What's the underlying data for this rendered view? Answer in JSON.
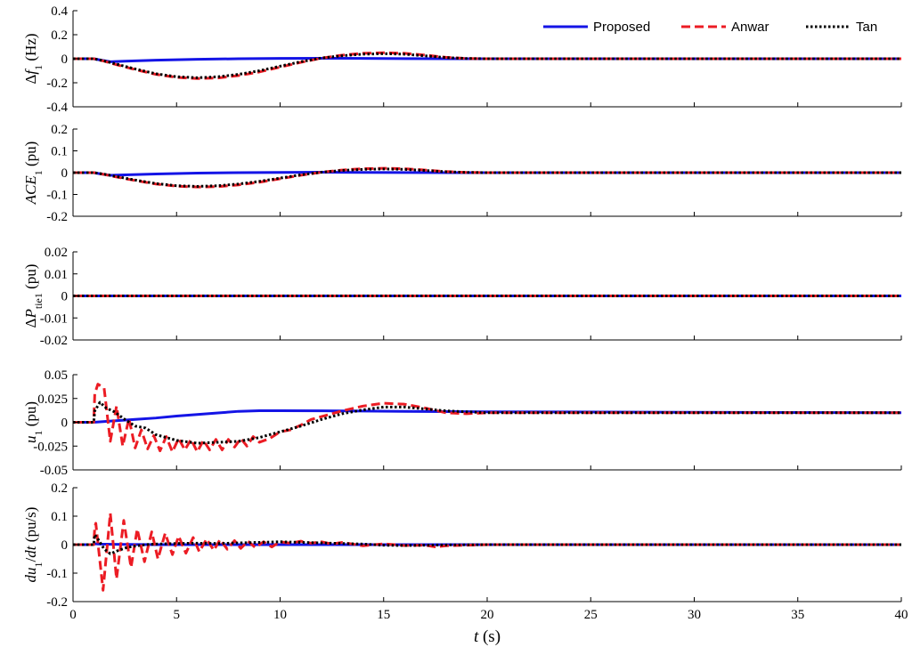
{
  "colors": {
    "proposed": "#1414e6",
    "anwar": "#ec1c24",
    "tan": "#000000",
    "axis": "#000000"
  },
  "legend": {
    "placement": "top-right",
    "items": [
      {
        "label": "Proposed",
        "color": "#1414e6",
        "dash": "solid"
      },
      {
        "label": "Anwar",
        "color": "#ec1c24",
        "dash": "dashed"
      },
      {
        "label": "Tan",
        "color": "#000000",
        "dash": "dotted"
      }
    ]
  },
  "chart_data": {
    "type": "line",
    "shared_x": {
      "label_main": "t",
      "label_unit": "(s)",
      "lim": [
        0,
        40
      ],
      "ticks": [
        0,
        5,
        10,
        15,
        20,
        25,
        30,
        35,
        40
      ],
      "tick_labels": [
        "0",
        "5",
        "10",
        "15",
        "20",
        "25",
        "30",
        "35",
        "40"
      ]
    },
    "panels": [
      {
        "id": "df1",
        "ylabel": {
          "prefix": "Δ",
          "var": "f",
          "sub": "1",
          "unit": " (Hz)"
        },
        "ylim": [
          -0.4,
          0.4
        ],
        "yticks": [
          -0.4,
          -0.2,
          0,
          0.2,
          0.4
        ],
        "ytick_labels": [
          "-0.4",
          "-0.2",
          "0",
          "0.2",
          "0.4"
        ],
        "series": [
          {
            "name": "Proposed",
            "x": [
              0,
              1,
              1.3,
              1.8,
              2.5,
              4,
              6,
              8,
              10,
              12,
              14,
              16,
              20,
              40
            ],
            "y": [
              0,
              0,
              -0.01,
              -0.025,
              -0.02,
              -0.012,
              -0.005,
              0,
              0.003,
              0.004,
              0.003,
              0.001,
              0,
              0
            ]
          },
          {
            "name": "Anwar",
            "x": [
              0,
              1,
              1.5,
              2,
              3,
              4,
              5,
              6,
              7,
              8,
              9,
              10,
              11,
              12,
              13,
              14,
              15,
              16,
              17,
              18,
              19,
              20,
              40
            ],
            "y": [
              0,
              0,
              -0.02,
              -0.045,
              -0.09,
              -0.13,
              -0.155,
              -0.165,
              -0.16,
              -0.14,
              -0.11,
              -0.07,
              -0.03,
              0.005,
              0.03,
              0.045,
              0.05,
              0.045,
              0.03,
              0.012,
              0.002,
              0,
              0
            ]
          },
          {
            "name": "Tan",
            "x": [
              0,
              1,
              1.5,
              2,
              3,
              4,
              5,
              6,
              7,
              8,
              9,
              10,
              11,
              12,
              13,
              14,
              15,
              16,
              17,
              18,
              19,
              20,
              40
            ],
            "y": [
              0,
              0,
              -0.018,
              -0.04,
              -0.085,
              -0.125,
              -0.15,
              -0.158,
              -0.15,
              -0.13,
              -0.1,
              -0.062,
              -0.025,
              0.006,
              0.025,
              0.038,
              0.042,
              0.038,
              0.024,
              0.01,
              0.002,
              0,
              0
            ]
          }
        ]
      },
      {
        "id": "ace1",
        "ylabel": {
          "prefix": "",
          "var": "ACE",
          "sub": "1",
          "unit": " (pu)"
        },
        "ylim": [
          -0.2,
          0.2
        ],
        "yticks": [
          -0.2,
          -0.1,
          0,
          0.1,
          0.2
        ],
        "ytick_labels": [
          "-0.2",
          "-0.1",
          "0",
          "0.1",
          "0.2"
        ],
        "series": [
          {
            "name": "Proposed",
            "x": [
              0,
              1,
              1.3,
              1.8,
              2.5,
              4,
              6,
              8,
              10,
              12,
              14,
              16,
              20,
              40
            ],
            "y": [
              0,
              0,
              -0.005,
              -0.012,
              -0.01,
              -0.006,
              -0.002,
              0,
              0.001,
              0.002,
              0.001,
              0.0005,
              0,
              0
            ]
          },
          {
            "name": "Anwar",
            "x": [
              0,
              1,
              1.5,
              2,
              3,
              4,
              5,
              6,
              7,
              8,
              9,
              10,
              11,
              12,
              13,
              14,
              15,
              16,
              17,
              18,
              19,
              20,
              40
            ],
            "y": [
              0,
              0,
              -0.008,
              -0.018,
              -0.036,
              -0.052,
              -0.062,
              -0.066,
              -0.064,
              -0.056,
              -0.044,
              -0.028,
              -0.012,
              0.002,
              0.012,
              0.018,
              0.02,
              0.018,
              0.012,
              0.005,
              0.001,
              0,
              0
            ]
          },
          {
            "name": "Tan",
            "x": [
              0,
              1,
              1.5,
              2,
              3,
              4,
              5,
              6,
              7,
              8,
              9,
              10,
              11,
              12,
              13,
              14,
              15,
              16,
              17,
              18,
              19,
              20,
              40
            ],
            "y": [
              0,
              0,
              -0.007,
              -0.016,
              -0.034,
              -0.05,
              -0.06,
              -0.063,
              -0.06,
              -0.052,
              -0.04,
              -0.025,
              -0.01,
              0.002,
              0.01,
              0.015,
              0.017,
              0.015,
              0.01,
              0.004,
              0.001,
              0,
              0
            ]
          }
        ]
      },
      {
        "id": "dptie1",
        "ylabel": {
          "prefix": "Δ",
          "var": "P",
          "sub": "tie1",
          "unit": " (pu)"
        },
        "ylim": [
          -0.02,
          0.02
        ],
        "yticks": [
          -0.02,
          -0.01,
          0,
          0.01,
          0.02
        ],
        "ytick_labels": [
          "-0.02",
          "-0.01",
          "0",
          "0.01",
          "0.02"
        ],
        "series": [
          {
            "name": "Proposed",
            "x": [
              0,
              40
            ],
            "y": [
              0,
              0
            ]
          },
          {
            "name": "Anwar",
            "x": [
              0,
              40
            ],
            "y": [
              0,
              0
            ]
          },
          {
            "name": "Tan",
            "x": [
              0,
              40
            ],
            "y": [
              0,
              0
            ]
          }
        ]
      },
      {
        "id": "u1",
        "ylabel": {
          "prefix": "",
          "var": "u",
          "sub": "1",
          "unit": " (pu)"
        },
        "ylim": [
          -0.05,
          0.05
        ],
        "yticks": [
          -0.05,
          -0.025,
          0,
          0.025,
          0.05
        ],
        "ytick_labels": [
          "-0.05",
          "-0.025",
          "0",
          "0.025",
          "0.05"
        ],
        "series": [
          {
            "name": "Proposed",
            "x": [
              0,
              1,
              2,
              3,
              4,
              5,
              6,
              7,
              8,
              9,
              10,
              12,
              14,
              16,
              18,
              20,
              40
            ],
            "y": [
              0,
              0,
              0.0015,
              0.003,
              0.0045,
              0.0065,
              0.0082,
              0.0098,
              0.0115,
              0.0122,
              0.0122,
              0.012,
              0.0118,
              0.0115,
              0.0112,
              0.011,
              0.01
            ]
          },
          {
            "name": "Anwar",
            "x": [
              0,
              1,
              1.05,
              1.2,
              1.5,
              1.8,
              2.1,
              2.4,
              2.7,
              3,
              3.3,
              3.6,
              3.9,
              4.2,
              4.5,
              4.8,
              5.1,
              5.4,
              5.7,
              6,
              6.3,
              6.6,
              6.9,
              7.2,
              7.5,
              7.8,
              8.1,
              8.4,
              8.7,
              9,
              9.5,
              10,
              10.5,
              11,
              11.5,
              12,
              13,
              14,
              15,
              16,
              17,
              18,
              19,
              20,
              40
            ],
            "y": [
              0,
              0,
              0.03,
              0.04,
              0.036,
              -0.02,
              0.017,
              -0.025,
              0.004,
              -0.027,
              -0.008,
              -0.028,
              -0.014,
              -0.03,
              -0.015,
              -0.031,
              -0.017,
              -0.029,
              -0.018,
              -0.031,
              -0.019,
              -0.029,
              -0.018,
              -0.029,
              -0.018,
              -0.026,
              -0.017,
              -0.025,
              -0.015,
              -0.021,
              -0.017,
              -0.01,
              -0.008,
              -0.003,
              0.003,
              0.006,
              0.012,
              0.017,
              0.02,
              0.019,
              0.015,
              0.01,
              0.009,
              0.01,
              0.01
            ]
          },
          {
            "name": "Tan",
            "x": [
              0,
              1,
              1.05,
              1.3,
              1.6,
              2,
              2.5,
              3,
              3.5,
              4,
              5,
              6,
              7,
              8,
              9,
              10,
              11,
              12,
              13,
              14,
              15,
              16,
              17,
              18,
              19,
              20,
              40
            ],
            "y": [
              0,
              0,
              0.012,
              0.021,
              0.015,
              0.011,
              0.003,
              -0.004,
              -0.006,
              -0.013,
              -0.019,
              -0.022,
              -0.021,
              -0.02,
              -0.016,
              -0.01,
              -0.004,
              0.003,
              0.009,
              0.013,
              0.016,
              0.016,
              0.014,
              0.012,
              0.011,
              0.01,
              0.01
            ]
          }
        ]
      },
      {
        "id": "du1dt",
        "ylabel": {
          "prefix": "",
          "var": "du",
          "sub": "1",
          "unit": "/",
          "var2": "dt",
          "unit2": " (pu/s)"
        },
        "ylim": [
          -0.2,
          0.2
        ],
        "yticks": [
          -0.2,
          -0.1,
          0,
          0.1,
          0.2
        ],
        "ytick_labels": [
          "-0.2",
          "-0.1",
          "0",
          "0.1",
          "0.2"
        ],
        "series": [
          {
            "name": "Proposed",
            "x": [
              0,
              1,
              1.05,
              1.3,
              2,
              4,
              40
            ],
            "y": [
              0,
              0,
              0.003,
              0.002,
              0.001,
              0,
              0
            ]
          },
          {
            "name": "Anwar",
            "x": [
              0,
              1,
              1.05,
              1.1,
              1.45,
              1.8,
              2.1,
              2.45,
              2.8,
              3.1,
              3.45,
              3.8,
              4.1,
              4.45,
              4.8,
              5.1,
              5.45,
              5.8,
              6.1,
              6.45,
              6.8,
              7.1,
              7.45,
              7.8,
              8.1,
              8.45,
              8.8,
              9.2,
              9.6,
              10,
              10.5,
              11,
              11.5,
              12,
              12.5,
              13,
              14,
              15,
              16,
              17,
              17.5,
              18,
              19,
              20,
              40
            ],
            "y": [
              0,
              0,
              0.06,
              0.075,
              -0.16,
              0.11,
              -0.12,
              0.085,
              -0.08,
              0.055,
              -0.06,
              0.045,
              -0.05,
              0.04,
              -0.035,
              0.03,
              -0.03,
              0.025,
              -0.025,
              0.02,
              -0.02,
              0.018,
              -0.016,
              0.014,
              -0.013,
              0.012,
              -0.01,
              0.01,
              -0.008,
              0.01,
              0.005,
              0.012,
              0.005,
              0.01,
              0.002,
              0.008,
              -0.004,
              0.003,
              -0.003,
              -0.002,
              -0.008,
              -0.004,
              -0.002,
              0,
              0
            ]
          },
          {
            "name": "Tan",
            "x": [
              0,
              1,
              1.05,
              1.2,
              1.5,
              1.8,
              2.2,
              2.6,
              3,
              3.5,
              4,
              5,
              6,
              7,
              8,
              9,
              10,
              11,
              12,
              13,
              14,
              15,
              16,
              17,
              18,
              20,
              40
            ],
            "y": [
              0,
              0,
              0.035,
              0.02,
              -0.015,
              -0.032,
              -0.02,
              -0.01,
              -0.005,
              0,
              0.002,
              0.004,
              0.005,
              0.004,
              0.006,
              0.008,
              0.01,
              0.008,
              0.006,
              0.004,
              0.002,
              -0.002,
              -0.003,
              -0.002,
              -0.001,
              0,
              0
            ]
          }
        ]
      }
    ]
  }
}
